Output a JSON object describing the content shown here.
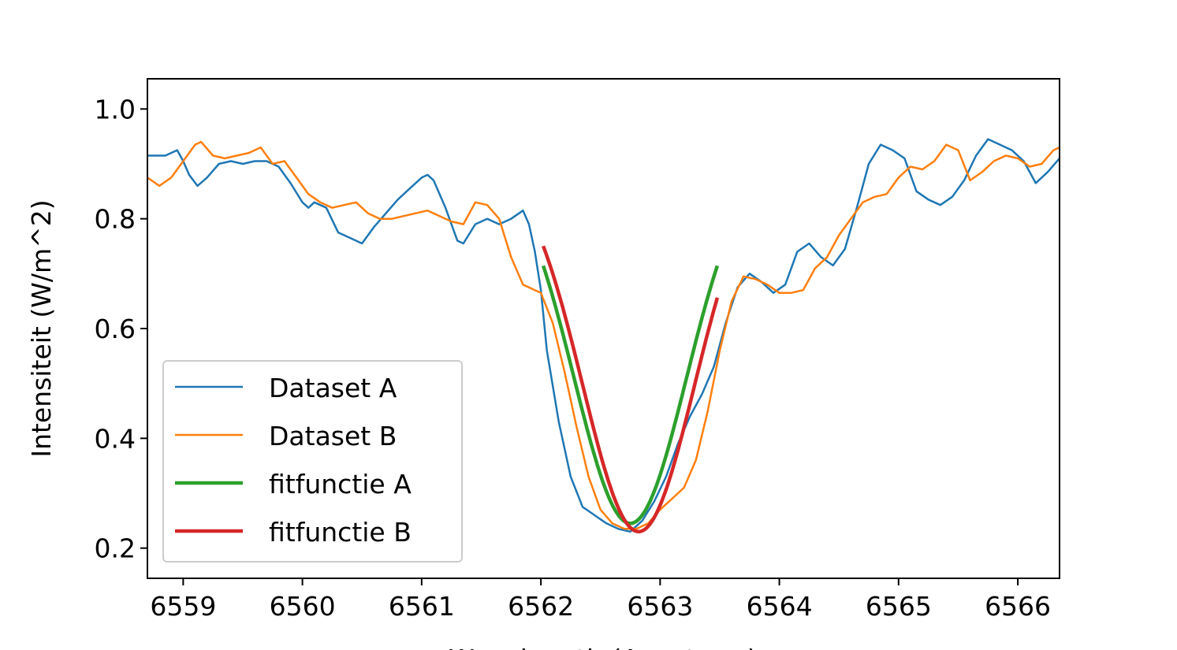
{
  "chart_data": {
    "type": "line",
    "title": "",
    "xlabel": "Wavelength (Angstrom)",
    "ylabel": "Intensiteit (W/m^2)",
    "xlim": [
      6558.7,
      6566.35
    ],
    "ylim": [
      0.145,
      1.055
    ],
    "xticks": [
      6559,
      6560,
      6561,
      6562,
      6563,
      6564,
      6565,
      6566
    ],
    "yticks": [
      0.2,
      0.4,
      0.6,
      0.8,
      1.0
    ],
    "xtick_labels": [
      "6559",
      "6560",
      "6561",
      "6562",
      "6563",
      "6564",
      "6565",
      "6566"
    ],
    "ytick_labels": [
      "0.2",
      "0.4",
      "0.6",
      "0.8",
      "1.0"
    ],
    "grid": false,
    "legend_position": "lower-left",
    "series": [
      {
        "name": "Dataset A",
        "color": "#1f77b4",
        "style": "thin",
        "x": [
          6558.7,
          6558.85,
          6558.95,
          6559.0,
          6559.05,
          6559.12,
          6559.2,
          6559.3,
          6559.4,
          6559.5,
          6559.6,
          6559.7,
          6559.8,
          6559.9,
          6560.0,
          6560.05,
          6560.1,
          6560.2,
          6560.3,
          6560.4,
          6560.5,
          6560.6,
          6560.7,
          6560.8,
          6560.9,
          6561.0,
          6561.05,
          6561.1,
          6561.2,
          6561.3,
          6561.35,
          6561.45,
          6561.55,
          6561.65,
          6561.75,
          6561.85,
          6561.9,
          6561.95,
          6562.0,
          6562.05,
          6562.15,
          6562.25,
          6562.35,
          6562.45,
          6562.55,
          6562.65,
          6562.75,
          6562.85,
          6562.95,
          6563.05,
          6563.15,
          6563.25,
          6563.35,
          6563.45,
          6563.55,
          6563.65,
          6563.75,
          6563.85,
          6563.95,
          6564.05,
          6564.15,
          6564.25,
          6564.35,
          6564.45,
          6564.55,
          6564.65,
          6564.75,
          6564.85,
          6564.95,
          6565.05,
          6565.15,
          6565.25,
          6565.35,
          6565.45,
          6565.55,
          6565.65,
          6565.75,
          6565.85,
          6565.95,
          6566.05,
          6566.15,
          6566.25,
          6566.35
        ],
        "y": [
          0.915,
          0.915,
          0.925,
          0.905,
          0.88,
          0.86,
          0.875,
          0.9,
          0.905,
          0.9,
          0.905,
          0.905,
          0.895,
          0.865,
          0.83,
          0.82,
          0.83,
          0.82,
          0.775,
          0.765,
          0.755,
          0.785,
          0.81,
          0.835,
          0.855,
          0.875,
          0.88,
          0.87,
          0.82,
          0.76,
          0.755,
          0.79,
          0.8,
          0.79,
          0.8,
          0.815,
          0.79,
          0.74,
          0.67,
          0.56,
          0.43,
          0.33,
          0.275,
          0.26,
          0.245,
          0.235,
          0.23,
          0.25,
          0.285,
          0.33,
          0.39,
          0.44,
          0.48,
          0.53,
          0.61,
          0.675,
          0.7,
          0.685,
          0.665,
          0.68,
          0.74,
          0.755,
          0.73,
          0.715,
          0.745,
          0.82,
          0.9,
          0.935,
          0.925,
          0.91,
          0.85,
          0.835,
          0.825,
          0.84,
          0.87,
          0.915,
          0.945,
          0.935,
          0.925,
          0.905,
          0.865,
          0.885,
          0.91
        ]
      },
      {
        "name": "Dataset B",
        "color": "#ff7f0e",
        "style": "thin",
        "x": [
          6558.7,
          6558.8,
          6558.9,
          6559.0,
          6559.1,
          6559.15,
          6559.25,
          6559.35,
          6559.45,
          6559.55,
          6559.65,
          6559.75,
          6559.85,
          6559.95,
          6560.05,
          6560.15,
          6560.25,
          6560.35,
          6560.45,
          6560.55,
          6560.65,
          6560.75,
          6560.85,
          6560.95,
          6561.05,
          6561.15,
          6561.25,
          6561.35,
          6561.45,
          6561.55,
          6561.65,
          6561.75,
          6561.85,
          6561.95,
          6562.0,
          6562.1,
          6562.2,
          6562.3,
          6562.4,
          6562.5,
          6562.6,
          6562.7,
          6562.8,
          6562.9,
          6563.0,
          6563.1,
          6563.2,
          6563.3,
          6563.4,
          6563.5,
          6563.6,
          6563.7,
          6563.8,
          6563.9,
          6564.0,
          6564.1,
          6564.2,
          6564.3,
          6564.4,
          6564.5,
          6564.6,
          6564.7,
          6564.8,
          6564.9,
          6565.0,
          6565.1,
          6565.2,
          6565.3,
          6565.4,
          6565.5,
          6565.6,
          6565.7,
          6565.8,
          6565.9,
          6566.0,
          6566.1,
          6566.2,
          6566.3,
          6566.35
        ],
        "y": [
          0.875,
          0.86,
          0.875,
          0.905,
          0.935,
          0.94,
          0.915,
          0.91,
          0.915,
          0.92,
          0.93,
          0.9,
          0.905,
          0.875,
          0.845,
          0.83,
          0.82,
          0.825,
          0.83,
          0.81,
          0.8,
          0.8,
          0.805,
          0.81,
          0.815,
          0.805,
          0.795,
          0.79,
          0.83,
          0.825,
          0.8,
          0.73,
          0.68,
          0.67,
          0.665,
          0.61,
          0.52,
          0.42,
          0.33,
          0.27,
          0.245,
          0.235,
          0.235,
          0.245,
          0.27,
          0.29,
          0.31,
          0.36,
          0.45,
          0.56,
          0.65,
          0.695,
          0.69,
          0.68,
          0.665,
          0.665,
          0.67,
          0.71,
          0.73,
          0.77,
          0.8,
          0.83,
          0.84,
          0.845,
          0.875,
          0.895,
          0.89,
          0.905,
          0.935,
          0.925,
          0.87,
          0.885,
          0.905,
          0.915,
          0.91,
          0.895,
          0.9,
          0.925,
          0.93
        ]
      },
      {
        "name": "fitfunctie A",
        "color": "#2ca02c",
        "style": "thick",
        "fit": {
          "center": 6562.75,
          "depth": 0.67,
          "sigma": 0.47,
          "continuum": 0.915,
          "x_range": [
            6562.02,
            6563.48
          ]
        }
      },
      {
        "name": "fitfunctie B",
        "color": "#d62728",
        "style": "thick",
        "fit": {
          "center": 6562.82,
          "depth": 0.68,
          "sigma": 0.47,
          "continuum": 0.91,
          "x_range": [
            6562.02,
            6563.48
          ]
        }
      }
    ]
  }
}
